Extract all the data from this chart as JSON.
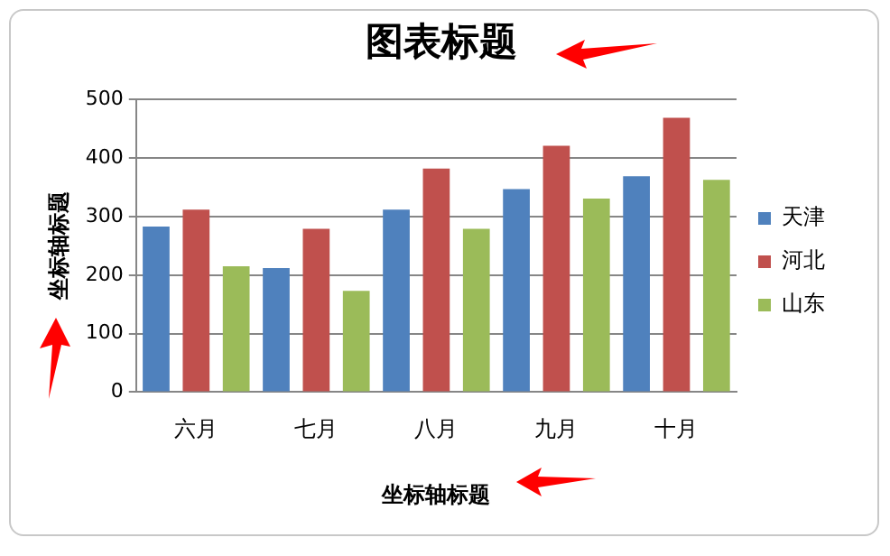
{
  "chart_data": {
    "type": "bar",
    "title": "图表标题",
    "xlabel": "坐标轴标题",
    "ylabel": "坐标轴标题",
    "categories": [
      "六月",
      "七月",
      "八月",
      "九月",
      "十月"
    ],
    "series": [
      {
        "name": "天津",
        "color": "#4f81bd",
        "values": [
          283,
          212,
          312,
          347,
          369
        ]
      },
      {
        "name": "河北",
        "color": "#c0504d",
        "values": [
          312,
          279,
          382,
          421,
          469
        ]
      },
      {
        "name": "山东",
        "color": "#9bbb59",
        "values": [
          215,
          173,
          279,
          331,
          363
        ]
      }
    ],
    "ylim": [
      0,
      500
    ],
    "yticks": [
      0,
      100,
      200,
      300,
      400,
      500
    ],
    "grid": "y",
    "legend": "right"
  }
}
